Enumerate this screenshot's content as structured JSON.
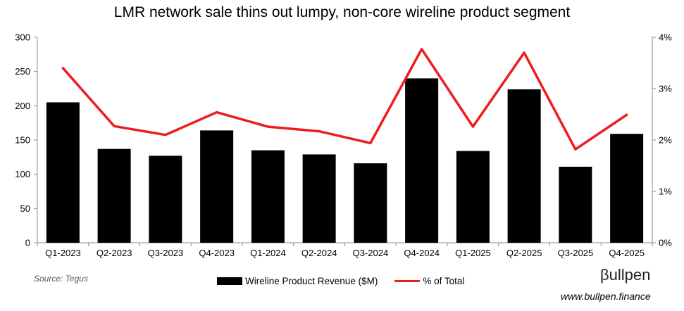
{
  "chart_data": {
    "type": "bar+line",
    "title": "LMR network sale thins out lumpy, non-core wireline product segment",
    "categories": [
      "Q1-2023",
      "Q2-2023",
      "Q3-2023",
      "Q4-2023",
      "Q1-2024",
      "Q2-2024",
      "Q3-2024",
      "Q4-2024",
      "Q1-2025",
      "Q2-2025",
      "Q3-2025",
      "Q4-2025"
    ],
    "series": [
      {
        "name": "Wireline Product Revenue ($M)",
        "type": "bar",
        "axis": "left",
        "values": [
          205,
          137,
          127,
          164,
          135,
          129,
          116,
          240,
          134,
          224,
          111,
          159
        ]
      },
      {
        "name": "% of Total",
        "type": "line",
        "axis": "right",
        "values": [
          3.4,
          2.27,
          2.1,
          2.54,
          2.26,
          2.17,
          1.94,
          3.77,
          2.26,
          3.7,
          1.82,
          2.49
        ]
      }
    ],
    "yleft": {
      "range": [
        0,
        300
      ],
      "ticks": [
        "0",
        "50",
        "100",
        "150",
        "200",
        "250",
        "300"
      ]
    },
    "yright": {
      "range": [
        0,
        4
      ],
      "ticks": [
        "0%",
        "1%",
        "2%",
        "3%",
        "4%"
      ]
    },
    "colors": {
      "bar": "#000000",
      "line": "#ee1c1c"
    },
    "legend_position": "bottom"
  },
  "source": "Source: Tegus",
  "brand": "βullpen",
  "website": "www.bullpen.finance"
}
